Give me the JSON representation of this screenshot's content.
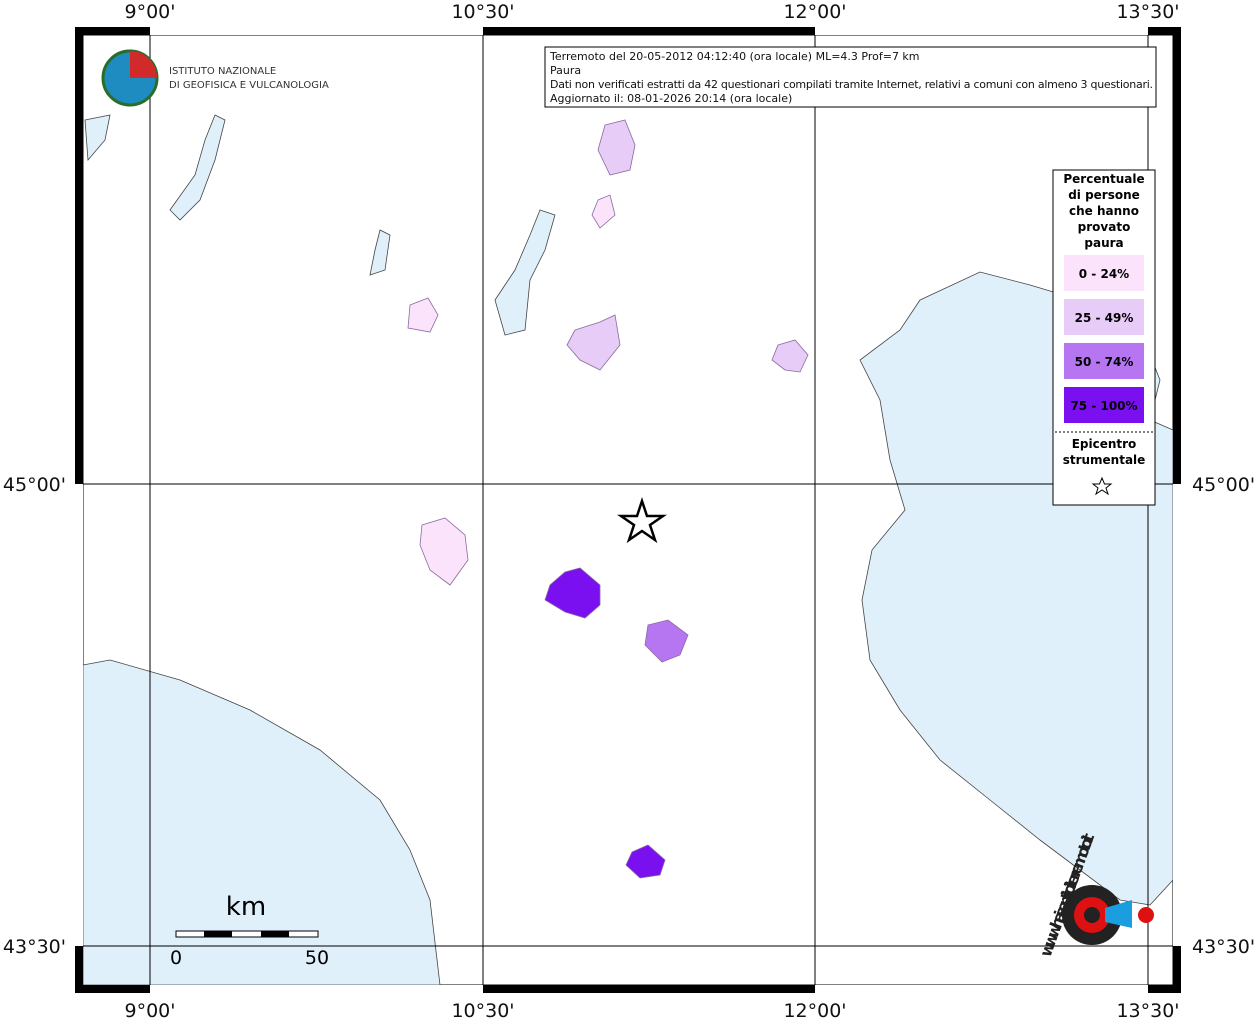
{
  "header": {
    "lines": [
      "Terremoto del 20-05-2012 04:12:40 (ora locale) ML=4.3 Prof=7 km",
      "Paura",
      "Dati non verificati estratti da 42 questionari compilati tramite Internet, relativi a comuni con almeno 3 questionari.",
      "Aggiornato il: 08-01-2026 20:14 (ora locale)"
    ]
  },
  "logo": {
    "lines": [
      "ISTITUTO NAZIONALE",
      "DI GEOFISICA E VULCANOLOGIA"
    ]
  },
  "axes": {
    "longitudes": [
      "9°00'",
      "10°30'",
      "12°00'",
      "13°30'"
    ],
    "latitudes": [
      "45°00'",
      "43°30'"
    ]
  },
  "legend": {
    "title": [
      "Percentuale",
      "di persone",
      "che hanno",
      "provato",
      "paura"
    ],
    "classes": [
      {
        "label": "0 - 24%",
        "color": "#fbe3fb"
      },
      {
        "label": "25 - 49%",
        "color": "#e6ccf6"
      },
      {
        "label": "50 - 74%",
        "color": "#b676f2"
      },
      {
        "label": "75 - 100%",
        "color": "#7a0ff0"
      }
    ],
    "epicenter": [
      "Epicentro",
      "strumentale"
    ]
  },
  "scale": {
    "unit": "km",
    "ticks": [
      "0",
      "50"
    ]
  },
  "watermark": "www.haisentitoilterremoto.it"
}
